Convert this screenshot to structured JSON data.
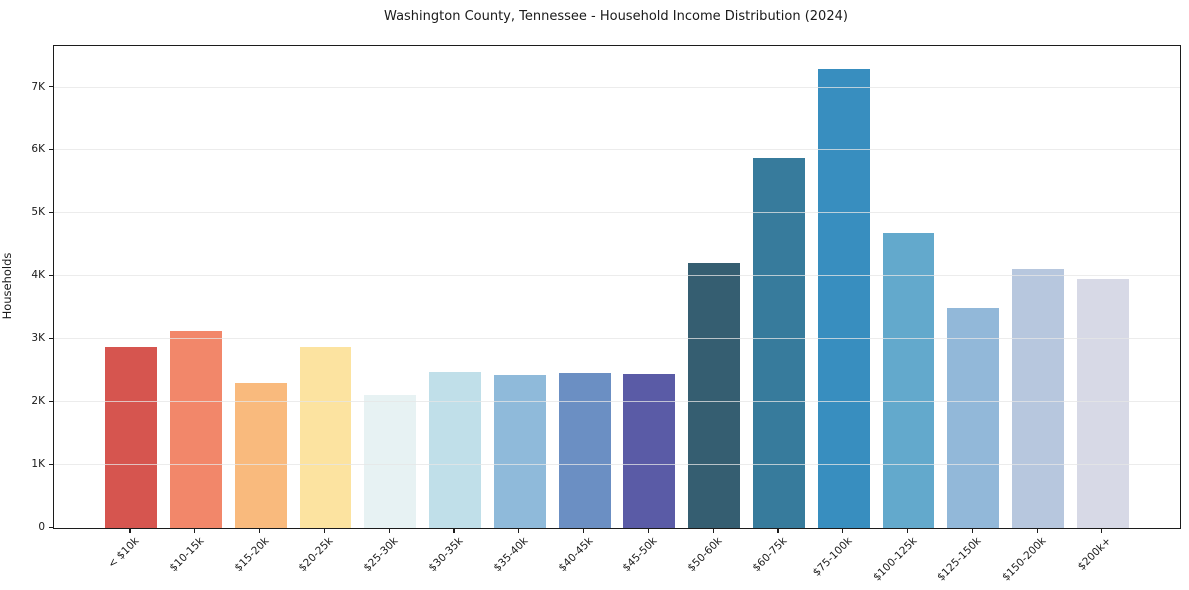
{
  "chart_data": {
    "type": "bar",
    "title": "Washington County, Tennessee - Household Income Distribution (2024)",
    "xlabel": "",
    "ylabel": "Households",
    "categories": [
      "< $10k",
      "$10-15k",
      "$15-20k",
      "$20-25k",
      "$25-30k",
      "$30-35k",
      "$35-40k",
      "$40-45k",
      "$45-50k",
      "$50-60k",
      "$60-75k",
      "$75-100k",
      "$100-125k",
      "$125-150k",
      "$150-200k",
      "$200k+"
    ],
    "values": [
      2880,
      3130,
      2300,
      2870,
      2110,
      2480,
      2430,
      2460,
      2440,
      4210,
      5880,
      7290,
      4690,
      3500,
      4120,
      3950
    ],
    "bar_colors": [
      "#d6554f",
      "#f2876a",
      "#f9ba7d",
      "#fce3a0",
      "#e7f2f3",
      "#c0dfe9",
      "#8fbada",
      "#6b8fc3",
      "#5a5ba6",
      "#355e71",
      "#377b9c",
      "#388ebf",
      "#63a9cc",
      "#92b8d9",
      "#b7c7de",
      "#d7d9e6"
    ],
    "ylim": [
      0,
      7660
    ],
    "yticks": [
      {
        "value": 0,
        "label": "0"
      },
      {
        "value": 1000,
        "label": "1K"
      },
      {
        "value": 2000,
        "label": "2K"
      },
      {
        "value": 3000,
        "label": "3K"
      },
      {
        "value": 4000,
        "label": "4K"
      },
      {
        "value": 5000,
        "label": "5K"
      },
      {
        "value": 6000,
        "label": "6K"
      },
      {
        "value": 7000,
        "label": "7K"
      }
    ],
    "grid": "horizontal",
    "legend": "none",
    "colors": {
      "gridline": "#e5e5e5",
      "spine": "#1c1c1c",
      "text": "#1a1a1a",
      "background": "#ffffff"
    }
  }
}
